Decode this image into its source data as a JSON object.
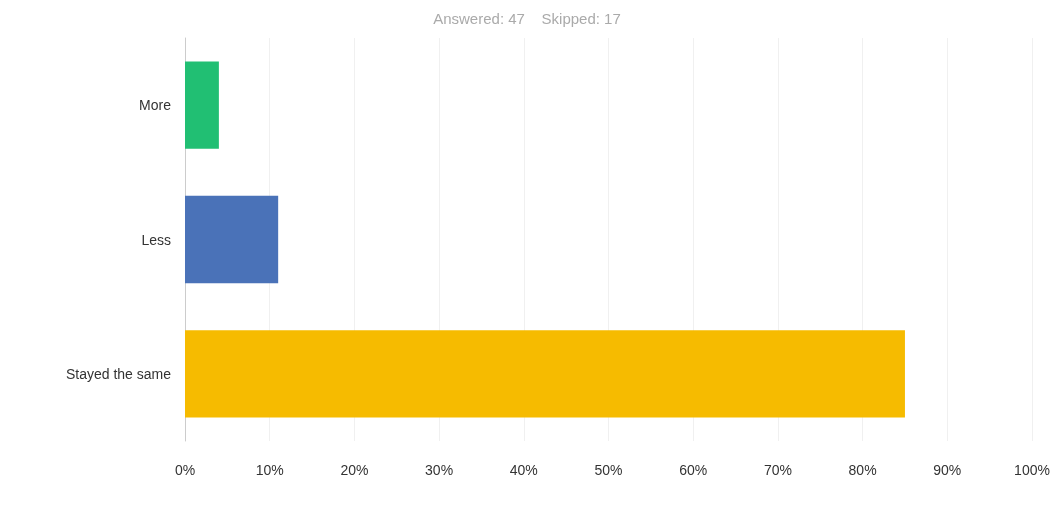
{
  "chart_data": {
    "type": "bar",
    "orientation": "horizontal",
    "title": "Answered: 47    Skipped: 17",
    "categories": [
      "More",
      "Less",
      "Stayed the same"
    ],
    "values": [
      4,
      11,
      85
    ],
    "colors": [
      "#21bf73",
      "#4a72b8",
      "#f6bb00"
    ],
    "xlim": [
      0,
      100
    ],
    "xticks": [
      {
        "value": 0,
        "label": "0%"
      },
      {
        "value": 10,
        "label": "10%"
      },
      {
        "value": 20,
        "label": "20%"
      },
      {
        "value": 30,
        "label": "30%"
      },
      {
        "value": 40,
        "label": "40%"
      },
      {
        "value": 50,
        "label": "50%"
      },
      {
        "value": 60,
        "label": "60%"
      },
      {
        "value": 70,
        "label": "70%"
      },
      {
        "value": 80,
        "label": "80%"
      },
      {
        "value": 90,
        "label": "90%"
      },
      {
        "value": 100,
        "label": "100%"
      }
    ],
    "grid": "x"
  }
}
